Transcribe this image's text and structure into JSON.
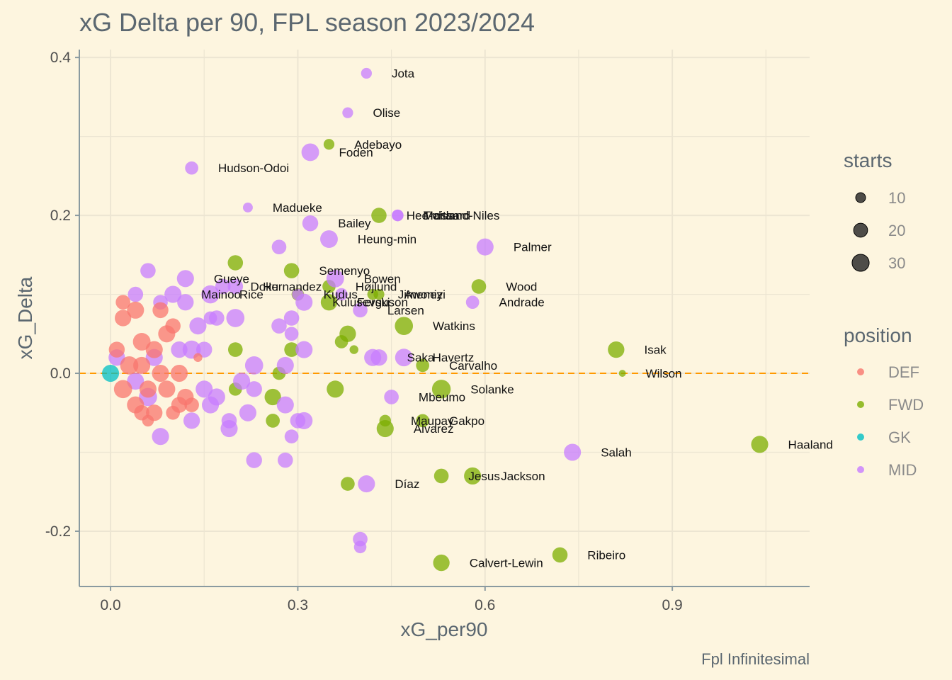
{
  "chart_data": {
    "type": "scatter",
    "title": "xG Delta per 90, FPL season 2023/2024",
    "xlabel": "xG_per90",
    "ylabel": "xG_Delta",
    "caption": "Fpl Infinitesimal",
    "xlim": [
      -0.05,
      1.12
    ],
    "ylim": [
      -0.27,
      0.41
    ],
    "x_ticks": [
      0.0,
      0.3,
      0.6,
      0.9
    ],
    "x_tick_labels": [
      "0.0",
      "0.3",
      "0.6",
      "0.9"
    ],
    "y_ticks": [
      -0.2,
      0.0,
      0.2,
      0.4
    ],
    "y_tick_labels": [
      "-0.2",
      "0.0",
      "0.2",
      "0.4"
    ],
    "grid": true,
    "reference_line": {
      "y": 0.0,
      "color": "#ff9900",
      "style": "dashed"
    },
    "legend_placement": "right",
    "size_legend": {
      "title": "starts",
      "values": [
        10,
        20,
        30
      ],
      "labels": [
        "10",
        "20",
        "30"
      ]
    },
    "color_legend": {
      "title": "position",
      "entries": [
        {
          "label": "DEF",
          "color": "#f8766d"
        },
        {
          "label": "FWD",
          "color": "#7cae00"
        },
        {
          "label": "GK",
          "color": "#00bfc4"
        },
        {
          "label": "MID",
          "color": "#c77cff"
        }
      ]
    },
    "labeled_points": [
      {
        "name": "Jota",
        "position": "MID",
        "x": 0.41,
        "y": 0.38,
        "starts": 12
      },
      {
        "name": "Olise",
        "position": "MID",
        "x": 0.38,
        "y": 0.33,
        "starts": 12
      },
      {
        "name": "Adebayo",
        "position": "FWD",
        "x": 0.35,
        "y": 0.29,
        "starts": 12
      },
      {
        "name": "Foden",
        "position": "MID",
        "x": 0.32,
        "y": 0.28,
        "starts": 32
      },
      {
        "name": "Hudson-Odoi",
        "position": "MID",
        "x": 0.13,
        "y": 0.26,
        "starts": 18
      },
      {
        "name": "Madueke",
        "position": "MID",
        "x": 0.22,
        "y": 0.21,
        "starts": 10
      },
      {
        "name": "Hee-chan",
        "position": "FWD",
        "x": 0.43,
        "y": 0.2,
        "starts": 24
      },
      {
        "name": "Maitland-Niles",
        "position": "MID",
        "x": 0.46,
        "y": 0.2,
        "starts": 14
      },
      {
        "name": "Trossard",
        "position": "MID",
        "x": 0.46,
        "y": 0.2,
        "starts": 14
      },
      {
        "name": "Heung-min",
        "position": "MID",
        "x": 0.35,
        "y": 0.17,
        "starts": 32
      },
      {
        "name": "Bailey",
        "position": "MID",
        "x": 0.32,
        "y": 0.19,
        "starts": 26
      },
      {
        "name": "Palmer",
        "position": "MID",
        "x": 0.6,
        "y": 0.16,
        "starts": 30
      },
      {
        "name": "Semenyo",
        "position": "FWD",
        "x": 0.29,
        "y": 0.13,
        "starts": 24
      },
      {
        "name": "Gueye",
        "position": "MID",
        "x": 0.12,
        "y": 0.12,
        "starts": 30
      },
      {
        "name": "Højlund",
        "position": "FWD",
        "x": 0.35,
        "y": 0.11,
        "starts": 18
      },
      {
        "name": "Hernandez",
        "position": "MID",
        "x": 0.2,
        "y": 0.11,
        "starts": 24
      },
      {
        "name": "Doku",
        "position": "MID",
        "x": 0.18,
        "y": 0.11,
        "starts": 24
      },
      {
        "name": "Kudus",
        "position": "MID",
        "x": 0.3,
        "y": 0.1,
        "starts": 14
      },
      {
        "name": "Bowen",
        "position": "MID",
        "x": 0.36,
        "y": 0.12,
        "starts": 32
      },
      {
        "name": "Jimenez",
        "position": "FWD",
        "x": 0.42,
        "y": 0.1,
        "starts": 12
      },
      {
        "name": "Mainoo",
        "position": "MID",
        "x": 0.1,
        "y": 0.1,
        "starts": 30
      },
      {
        "name": "Rice",
        "position": "MID",
        "x": 0.16,
        "y": 0.1,
        "starts": 34
      },
      {
        "name": "Kulusevski",
        "position": "MID",
        "x": 0.31,
        "y": 0.09,
        "starts": 30
      },
      {
        "name": "Ferguson",
        "position": "FWD",
        "x": 0.35,
        "y": 0.09,
        "starts": 28
      },
      {
        "name": "Larsen",
        "position": "MID",
        "x": 0.4,
        "y": 0.08,
        "starts": 22
      },
      {
        "name": "Awoniyi",
        "position": "FWD",
        "x": 0.43,
        "y": 0.1,
        "starts": 12
      },
      {
        "name": "Wood",
        "position": "FWD",
        "x": 0.59,
        "y": 0.11,
        "starts": 22
      },
      {
        "name": "Andrade",
        "position": "MID",
        "x": 0.58,
        "y": 0.09,
        "starts": 18
      },
      {
        "name": "Watkins",
        "position": "FWD",
        "x": 0.47,
        "y": 0.06,
        "starts": 34
      },
      {
        "name": "Isak",
        "position": "FWD",
        "x": 0.81,
        "y": 0.03,
        "starts": 28
      },
      {
        "name": "Havertz",
        "position": "MID",
        "x": 0.47,
        "y": 0.02,
        "starts": 32
      },
      {
        "name": "Saka",
        "position": "MID",
        "x": 0.43,
        "y": 0.02,
        "starts": 28
      },
      {
        "name": "Carvalho",
        "position": "FWD",
        "x": 0.5,
        "y": 0.01,
        "starts": 18
      },
      {
        "name": "Wilson",
        "position": "FWD",
        "x": 0.82,
        "y": 0.0,
        "starts": 5
      },
      {
        "name": "Solanke",
        "position": "FWD",
        "x": 0.53,
        "y": -0.02,
        "starts": 36
      },
      {
        "name": "Mbeumo",
        "position": "MID",
        "x": 0.45,
        "y": -0.03,
        "starts": 22
      },
      {
        "name": "Maupay",
        "position": "FWD",
        "x": 0.44,
        "y": -0.06,
        "starts": 14
      },
      {
        "name": "Gakpo",
        "position": "FWD",
        "x": 0.5,
        "y": -0.06,
        "starts": 18
      },
      {
        "name": "Alvarez",
        "position": "FWD",
        "x": 0.44,
        "y": -0.07,
        "starts": 30
      },
      {
        "name": "Haaland",
        "position": "FWD",
        "x": 1.04,
        "y": -0.09,
        "starts": 30
      },
      {
        "name": "Salah",
        "position": "MID",
        "x": 0.74,
        "y": -0.1,
        "starts": 30
      },
      {
        "name": "Jesus",
        "position": "FWD",
        "x": 0.53,
        "y": -0.13,
        "starts": 22
      },
      {
        "name": "Jackson",
        "position": "FWD",
        "x": 0.58,
        "y": -0.13,
        "starts": 30
      },
      {
        "name": "Díaz",
        "position": "MID",
        "x": 0.41,
        "y": -0.14,
        "starts": 30
      },
      {
        "name": "Ribeiro",
        "position": "FWD",
        "x": 0.72,
        "y": -0.23,
        "starts": 24
      },
      {
        "name": "Calvert-Lewin",
        "position": "FWD",
        "x": 0.53,
        "y": -0.24,
        "starts": 28
      }
    ],
    "other_points": [
      {
        "position": "FWD",
        "x": 0.2,
        "y": 0.14,
        "starts": 24
      },
      {
        "position": "FWD",
        "x": 0.38,
        "y": 0.05,
        "starts": 28
      },
      {
        "position": "FWD",
        "x": 0.37,
        "y": 0.04,
        "starts": 18
      },
      {
        "position": "FWD",
        "x": 0.39,
        "y": 0.03,
        "starts": 8
      },
      {
        "position": "FWD",
        "x": 0.2,
        "y": 0.03,
        "starts": 22
      },
      {
        "position": "FWD",
        "x": 0.29,
        "y": 0.03,
        "starts": 22
      },
      {
        "position": "FWD",
        "x": 0.27,
        "y": 0.0,
        "starts": 18
      },
      {
        "position": "FWD",
        "x": 0.36,
        "y": -0.02,
        "starts": 30
      },
      {
        "position": "FWD",
        "x": 0.26,
        "y": -0.03,
        "starts": 28
      },
      {
        "position": "FWD",
        "x": 0.26,
        "y": -0.06,
        "starts": 20
      },
      {
        "position": "FWD",
        "x": 0.2,
        "y": -0.02,
        "starts": 18
      },
      {
        "position": "FWD",
        "x": 0.38,
        "y": -0.14,
        "starts": 20
      },
      {
        "position": "FWD",
        "x": 0.3,
        "y": 0.1,
        "starts": 16
      },
      {
        "position": "MID",
        "x": 0.06,
        "y": 0.13,
        "starts": 24
      },
      {
        "position": "MID",
        "x": 0.04,
        "y": 0.1,
        "starts": 24
      },
      {
        "position": "MID",
        "x": 0.12,
        "y": 0.09,
        "starts": 28
      },
      {
        "position": "MID",
        "x": 0.08,
        "y": 0.09,
        "starts": 22
      },
      {
        "position": "MID",
        "x": 0.17,
        "y": 0.07,
        "starts": 24
      },
      {
        "position": "MID",
        "x": 0.2,
        "y": 0.07,
        "starts": 34
      },
      {
        "position": "MID",
        "x": 0.14,
        "y": 0.06,
        "starts": 30
      },
      {
        "position": "MID",
        "x": 0.27,
        "y": 0.06,
        "starts": 24
      },
      {
        "position": "MID",
        "x": 0.29,
        "y": 0.07,
        "starts": 24
      },
      {
        "position": "MID",
        "x": 0.29,
        "y": 0.05,
        "starts": 20
      },
      {
        "position": "MID",
        "x": 0.31,
        "y": 0.03,
        "starts": 30
      },
      {
        "position": "MID",
        "x": 0.42,
        "y": 0.02,
        "starts": 30
      },
      {
        "position": "MID",
        "x": 0.23,
        "y": 0.01,
        "starts": 34
      },
      {
        "position": "MID",
        "x": 0.28,
        "y": 0.01,
        "starts": 30
      },
      {
        "position": "MID",
        "x": 0.21,
        "y": -0.01,
        "starts": 30
      },
      {
        "position": "MID",
        "x": 0.23,
        "y": -0.02,
        "starts": 26
      },
      {
        "position": "MID",
        "x": 0.28,
        "y": -0.04,
        "starts": 30
      },
      {
        "position": "MID",
        "x": 0.3,
        "y": -0.06,
        "starts": 24
      },
      {
        "position": "MID",
        "x": 0.31,
        "y": -0.06,
        "starts": 30
      },
      {
        "position": "MID",
        "x": 0.22,
        "y": -0.05,
        "starts": 30
      },
      {
        "position": "MID",
        "x": 0.19,
        "y": -0.06,
        "starts": 24
      },
      {
        "position": "MID",
        "x": 0.19,
        "y": -0.07,
        "starts": 30
      },
      {
        "position": "MID",
        "x": 0.29,
        "y": -0.08,
        "starts": 20
      },
      {
        "position": "MID",
        "x": 0.23,
        "y": -0.11,
        "starts": 26
      },
      {
        "position": "MID",
        "x": 0.28,
        "y": -0.11,
        "starts": 24
      },
      {
        "position": "MID",
        "x": 0.13,
        "y": -0.06,
        "starts": 28
      },
      {
        "position": "MID",
        "x": 0.08,
        "y": -0.08,
        "starts": 30
      },
      {
        "position": "MID",
        "x": 0.16,
        "y": -0.04,
        "starts": 30
      },
      {
        "position": "MID",
        "x": 0.11,
        "y": 0.03,
        "starts": 28
      },
      {
        "position": "MID",
        "x": 0.13,
        "y": 0.03,
        "starts": 34
      },
      {
        "position": "MID",
        "x": 0.15,
        "y": 0.03,
        "starts": 26
      },
      {
        "position": "MID",
        "x": 0.07,
        "y": 0.02,
        "starts": 30
      },
      {
        "position": "MID",
        "x": 0.01,
        "y": 0.02,
        "starts": 28
      },
      {
        "position": "MID",
        "x": 0.04,
        "y": -0.01,
        "starts": 30
      },
      {
        "position": "MID",
        "x": 0.06,
        "y": -0.03,
        "starts": 34
      },
      {
        "position": "MID",
        "x": 0.15,
        "y": -0.02,
        "starts": 30
      },
      {
        "position": "MID",
        "x": 0.17,
        "y": -0.03,
        "starts": 30
      },
      {
        "position": "MID",
        "x": 0.4,
        "y": -0.21,
        "starts": 22
      },
      {
        "position": "MID",
        "x": 0.4,
        "y": -0.22,
        "starts": 16
      },
      {
        "position": "MID",
        "x": 0.37,
        "y": 0.1,
        "starts": 16
      },
      {
        "position": "MID",
        "x": 0.27,
        "y": 0.16,
        "starts": 22
      },
      {
        "position": "MID",
        "x": 0.16,
        "y": 0.07,
        "starts": 18
      },
      {
        "position": "DEF",
        "x": 0.02,
        "y": 0.09,
        "starts": 22
      },
      {
        "position": "DEF",
        "x": 0.04,
        "y": 0.08,
        "starts": 30
      },
      {
        "position": "DEF",
        "x": 0.02,
        "y": 0.07,
        "starts": 28
      },
      {
        "position": "DEF",
        "x": 0.08,
        "y": 0.08,
        "starts": 26
      },
      {
        "position": "DEF",
        "x": 0.1,
        "y": 0.06,
        "starts": 24
      },
      {
        "position": "DEF",
        "x": 0.05,
        "y": 0.04,
        "starts": 32
      },
      {
        "position": "DEF",
        "x": 0.09,
        "y": 0.05,
        "starts": 30
      },
      {
        "position": "DEF",
        "x": 0.07,
        "y": 0.03,
        "starts": 30
      },
      {
        "position": "DEF",
        "x": 0.03,
        "y": 0.01,
        "starts": 34
      },
      {
        "position": "DEF",
        "x": 0.05,
        "y": 0.01,
        "starts": 30
      },
      {
        "position": "DEF",
        "x": 0.08,
        "y": 0.0,
        "starts": 30
      },
      {
        "position": "DEF",
        "x": 0.11,
        "y": 0.0,
        "starts": 30
      },
      {
        "position": "DEF",
        "x": 0.02,
        "y": -0.02,
        "starts": 34
      },
      {
        "position": "DEF",
        "x": 0.06,
        "y": -0.02,
        "starts": 30
      },
      {
        "position": "DEF",
        "x": 0.09,
        "y": -0.02,
        "starts": 30
      },
      {
        "position": "DEF",
        "x": 0.12,
        "y": -0.03,
        "starts": 28
      },
      {
        "position": "DEF",
        "x": 0.04,
        "y": -0.04,
        "starts": 30
      },
      {
        "position": "DEF",
        "x": 0.07,
        "y": -0.05,
        "starts": 28
      },
      {
        "position": "DEF",
        "x": 0.11,
        "y": -0.04,
        "starts": 26
      },
      {
        "position": "DEF",
        "x": 0.05,
        "y": -0.05,
        "starts": 24
      },
      {
        "position": "DEF",
        "x": 0.1,
        "y": -0.05,
        "starts": 20
      },
      {
        "position": "DEF",
        "x": 0.06,
        "y": -0.06,
        "starts": 14
      },
      {
        "position": "DEF",
        "x": 0.14,
        "y": 0.02,
        "starts": 8
      },
      {
        "position": "DEF",
        "x": 0.01,
        "y": 0.03,
        "starts": 26
      },
      {
        "position": "DEF",
        "x": 0.13,
        "y": -0.04,
        "starts": 22
      },
      {
        "position": "GK",
        "x": 0.0,
        "y": 0.0,
        "starts": 30
      }
    ]
  }
}
